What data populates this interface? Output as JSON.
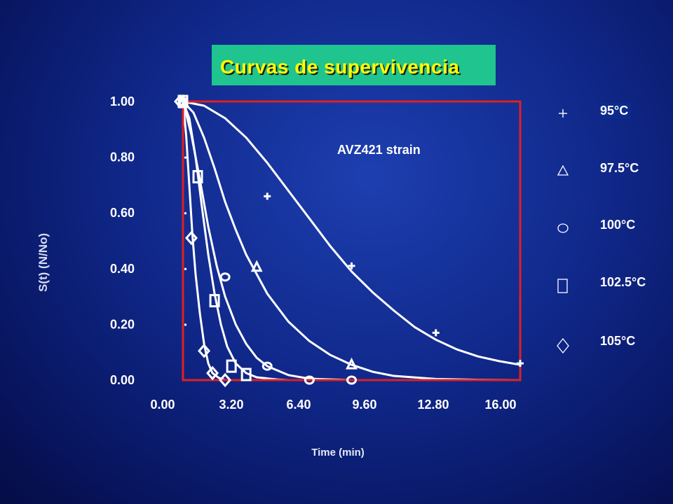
{
  "slide": {
    "title": "Curvas de supervivencia",
    "annotation": "AVZ421 strain"
  },
  "colors": {
    "title_bg": "#1fc48e",
    "title_text": "#ffff00",
    "frame": "#e02020",
    "curves": "#ffffff"
  },
  "chart_data": {
    "type": "scatter",
    "xlabel": "Time (min)",
    "ylabel": "S(t) (N/No)",
    "xlim": [
      0,
      16
    ],
    "ylim": [
      0,
      1
    ],
    "x_ticks": [
      "0.00",
      "3.20",
      "6.40",
      "9.60",
      "12.80",
      "16.00"
    ],
    "y_ticks": [
      "0.00",
      "0.20",
      "0.40",
      "0.60",
      "0.80",
      "1.00"
    ],
    "grid": false,
    "legend": "right",
    "series": [
      {
        "name": "95°C",
        "marker": "plus-icon",
        "symbol": "+",
        "x": [
          0,
          4,
          8,
          12,
          16
        ],
        "y": [
          1.0,
          0.66,
          0.41,
          0.17,
          0.06
        ],
        "fit": [
          [
            0,
            1.0
          ],
          [
            1,
            0.985
          ],
          [
            2,
            0.94
          ],
          [
            3,
            0.87
          ],
          [
            4,
            0.78
          ],
          [
            5,
            0.68
          ],
          [
            6,
            0.58
          ],
          [
            7,
            0.48
          ],
          [
            8,
            0.39
          ],
          [
            9,
            0.315
          ],
          [
            10,
            0.25
          ],
          [
            11,
            0.19
          ],
          [
            12,
            0.145
          ],
          [
            13,
            0.11
          ],
          [
            14,
            0.085
          ],
          [
            15,
            0.068
          ],
          [
            16,
            0.055
          ]
        ]
      },
      {
        "name": "97.5°C",
        "marker": "triangle-icon",
        "symbol": "△",
        "x": [
          0,
          3.5,
          8
        ],
        "y": [
          1.0,
          0.405,
          0.055
        ],
        "fit": [
          [
            0,
            1.0
          ],
          [
            0.5,
            0.96
          ],
          [
            1,
            0.87
          ],
          [
            1.5,
            0.76
          ],
          [
            2,
            0.64
          ],
          [
            2.5,
            0.54
          ],
          [
            3,
            0.45
          ],
          [
            4,
            0.31
          ],
          [
            5,
            0.21
          ],
          [
            6,
            0.14
          ],
          [
            7,
            0.09
          ],
          [
            8,
            0.055
          ],
          [
            9,
            0.03
          ],
          [
            10,
            0.015
          ],
          [
            12,
            0.004
          ],
          [
            14,
            0.001
          ],
          [
            16,
            0.0
          ]
        ]
      },
      {
        "name": "100°C",
        "marker": "circle-icon",
        "symbol": "○",
        "x": [
          0,
          2,
          4,
          6,
          8
        ],
        "y": [
          1.0,
          0.37,
          0.05,
          0.0,
          0.0
        ],
        "fit": [
          [
            0,
            1.0
          ],
          [
            0.4,
            0.88
          ],
          [
            0.8,
            0.72
          ],
          [
            1.2,
            0.55
          ],
          [
            1.6,
            0.41
          ],
          [
            2,
            0.3
          ],
          [
            2.5,
            0.2
          ],
          [
            3,
            0.13
          ],
          [
            3.5,
            0.08
          ],
          [
            4,
            0.05
          ],
          [
            5,
            0.018
          ],
          [
            6,
            0.005
          ],
          [
            8,
            0.0
          ],
          [
            16,
            0.0
          ]
        ]
      },
      {
        "name": "102.5°C",
        "marker": "square-icon",
        "symbol": "□",
        "x": [
          0,
          0.7,
          1.5,
          2.3,
          3
        ],
        "y": [
          1.0,
          0.73,
          0.285,
          0.05,
          0.02
        ],
        "fit": [
          [
            0,
            1.0
          ],
          [
            0.3,
            0.94
          ],
          [
            0.6,
            0.8
          ],
          [
            0.9,
            0.62
          ],
          [
            1.2,
            0.45
          ],
          [
            1.5,
            0.31
          ],
          [
            1.8,
            0.2
          ],
          [
            2.1,
            0.12
          ],
          [
            2.5,
            0.06
          ],
          [
            3,
            0.025
          ],
          [
            3.5,
            0.01
          ],
          [
            4.5,
            0.002
          ],
          [
            5,
            0.0
          ],
          [
            16,
            0.0
          ]
        ]
      },
      {
        "name": "105°C",
        "marker": "diamond-icon",
        "symbol": "◇",
        "x": [
          0,
          0.4,
          1,
          1.4,
          2
        ],
        "y": [
          1.0,
          0.51,
          0.105,
          0.025,
          0.0
        ],
        "fit": [
          [
            0,
            1.0
          ],
          [
            0.15,
            0.88
          ],
          [
            0.3,
            0.7
          ],
          [
            0.45,
            0.52
          ],
          [
            0.6,
            0.38
          ],
          [
            0.8,
            0.24
          ],
          [
            1,
            0.13
          ],
          [
            1.2,
            0.06
          ],
          [
            1.4,
            0.025
          ],
          [
            1.7,
            0.008
          ],
          [
            2,
            0.0
          ],
          [
            16,
            0.0
          ]
        ]
      }
    ]
  }
}
